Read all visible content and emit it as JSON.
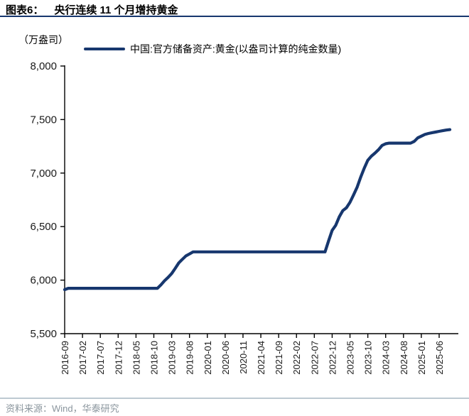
{
  "header": {
    "figure_label": "图表6：",
    "figure_title": "央行连续 11 个月增持黄金"
  },
  "footer": {
    "source": "资料来源：Wind，华泰研究"
  },
  "chart_data": {
    "type": "line",
    "title": "央行连续 11 个月增持黄金",
    "unit_label": "（万盎司）",
    "legend": "中国:官方储备资产:黄金(以盎司计算的纯金数量)",
    "legend_position": "top",
    "grid": false,
    "line_color": "#17376e",
    "ylim": [
      5500,
      8000
    ],
    "y_ticks": [
      {
        "value": 5500,
        "label": "5,500"
      },
      {
        "value": 6000,
        "label": "6,000"
      },
      {
        "value": 6500,
        "label": "6,500"
      },
      {
        "value": 7000,
        "label": "7,000"
      },
      {
        "value": 7500,
        "label": "7,500"
      },
      {
        "value": 8000,
        "label": "8,000"
      }
    ],
    "start_month": "2016-09",
    "x_axis_span_months": 105,
    "x_tick_labels": [
      "2016-09",
      "2017-02",
      "2017-07",
      "2017-12",
      "2018-05",
      "2018-10",
      "2019-03",
      "2019-08",
      "2020-01",
      "2020-06",
      "2020-11",
      "2021-04",
      "2021-09",
      "2022-02",
      "2022-07",
      "2022-12",
      "2023-05",
      "2023-10",
      "2024-03",
      "2024-08",
      "2025-01",
      "2025-06"
    ],
    "values": [
      5911,
      5924,
      5924,
      5924,
      5924,
      5924,
      5924,
      5924,
      5924,
      5924,
      5924,
      5924,
      5924,
      5924,
      5924,
      5924,
      5924,
      5924,
      5924,
      5924,
      5924,
      5924,
      5924,
      5924,
      5924,
      5924,
      5924,
      5956,
      5994,
      6026,
      6062,
      6110,
      6161,
      6194,
      6226,
      6245,
      6264,
      6264,
      6264,
      6264,
      6264,
      6264,
      6264,
      6264,
      6264,
      6264,
      6264,
      6264,
      6264,
      6264,
      6264,
      6264,
      6264,
      6264,
      6264,
      6264,
      6264,
      6264,
      6264,
      6264,
      6264,
      6264,
      6264,
      6264,
      6264,
      6264,
      6264,
      6264,
      6264,
      6264,
      6264,
      6264,
      6264,
      6264,
      6367,
      6464,
      6512,
      6592,
      6650,
      6676,
      6727,
      6795,
      6869,
      6962,
      7046,
      7120,
      7158,
      7187,
      7219,
      7258,
      7274,
      7280,
      7280,
      7280,
      7280,
      7280,
      7280,
      7280,
      7296,
      7329,
      7345,
      7361,
      7370,
      7377,
      7383,
      7390,
      7396,
      7402,
      7406
    ]
  }
}
